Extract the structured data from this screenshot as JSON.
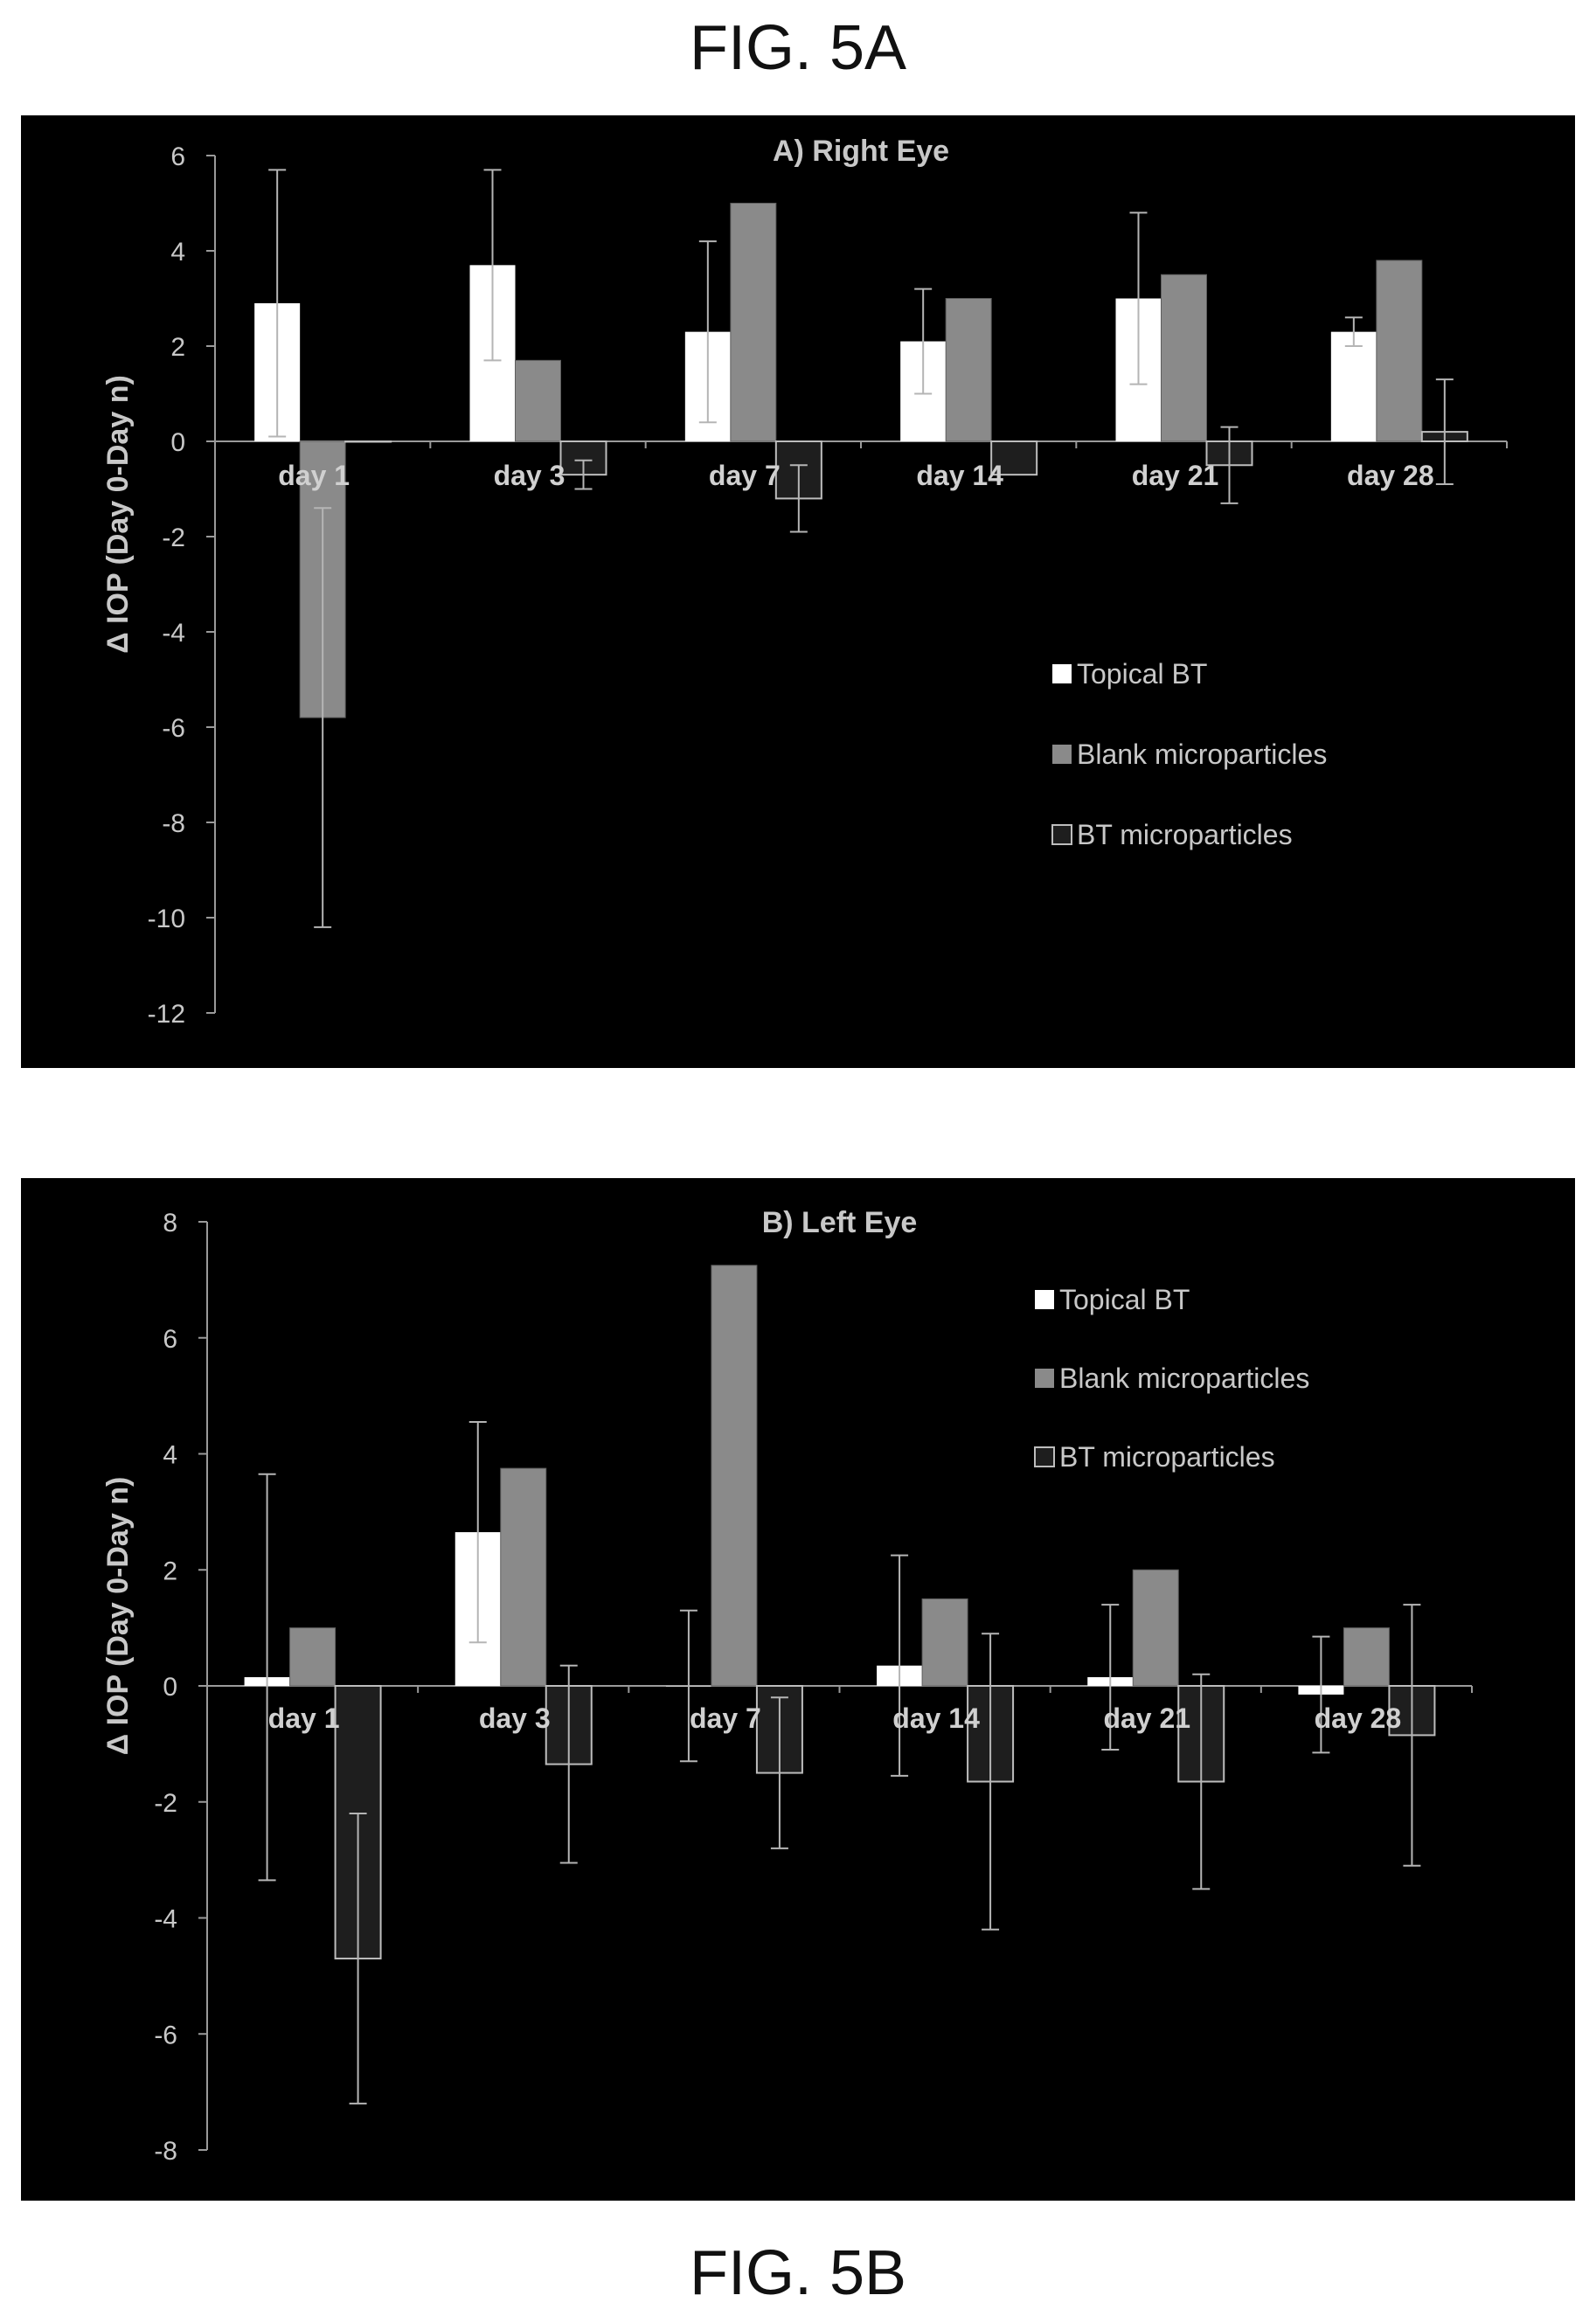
{
  "figures": {
    "a_label": "FIG. 5A",
    "b_label": "FIG. 5B"
  },
  "colors": {
    "background": "#000000",
    "axis": "#9a9a9a",
    "text": "#c8c8c8",
    "topical": "#ffffff",
    "blank": "#8a8a8a",
    "bt": "#1e1e1e",
    "bt_border": "#bdbdbd"
  },
  "chart_data": [
    {
      "type": "bar",
      "title": "A) Right Eye",
      "ylabel": "Δ IOP (Day 0-Day n)",
      "xlabel": "",
      "categories": [
        "day 1",
        "day 3",
        "day 7",
        "day 14",
        "day 21",
        "day 28"
      ],
      "ylim": [
        -12,
        6
      ],
      "yticks": [
        6,
        4,
        2,
        0,
        -2,
        -4,
        -6,
        -8,
        -10,
        -12
      ],
      "legend_position": "right",
      "series": [
        {
          "name": "Topical BT",
          "values": [
            2.9,
            3.7,
            2.3,
            2.1,
            3.0,
            2.3
          ],
          "err": [
            2.8,
            2.0,
            1.9,
            1.1,
            1.8,
            0.3
          ]
        },
        {
          "name": "Blank microparticles",
          "values": [
            -5.8,
            1.7,
            5.0,
            3.0,
            3.5,
            3.8
          ],
          "err": [
            4.4,
            0,
            0,
            0,
            0,
            0
          ]
        },
        {
          "name": "BT microparticles",
          "values": [
            0,
            -0.7,
            -1.2,
            -0.7,
            -0.5,
            0.2
          ],
          "err": [
            0,
            0.3,
            0.7,
            0,
            0.8,
            1.1
          ]
        }
      ]
    },
    {
      "type": "bar",
      "title": "B) Left Eye",
      "ylabel": "Δ IOP (Day 0-Day n)",
      "xlabel": "",
      "categories": [
        "day 1",
        "day 3",
        "day 7",
        "day 14",
        "day 21",
        "day 28"
      ],
      "ylim": [
        -8,
        8
      ],
      "yticks": [
        8,
        6,
        4,
        2,
        0,
        -2,
        -4,
        -6,
        -8
      ],
      "legend_position": "top-right",
      "series": [
        {
          "name": "Topical BT",
          "values": [
            0.15,
            2.65,
            0,
            0.35,
            0.15,
            -0.15
          ],
          "err": [
            3.5,
            1.9,
            1.3,
            1.9,
            1.25,
            1.0
          ]
        },
        {
          "name": "Blank microparticles",
          "values": [
            1.0,
            3.75,
            7.25,
            1.5,
            2.0,
            1.0
          ],
          "err": [
            0,
            0,
            0,
            0,
            0,
            0
          ]
        },
        {
          "name": "BT microparticles",
          "values": [
            -4.7,
            -1.35,
            -1.5,
            -1.65,
            -1.65,
            -0.85
          ],
          "err": [
            2.5,
            1.7,
            1.3,
            2.55,
            1.85,
            2.25
          ]
        }
      ]
    }
  ]
}
